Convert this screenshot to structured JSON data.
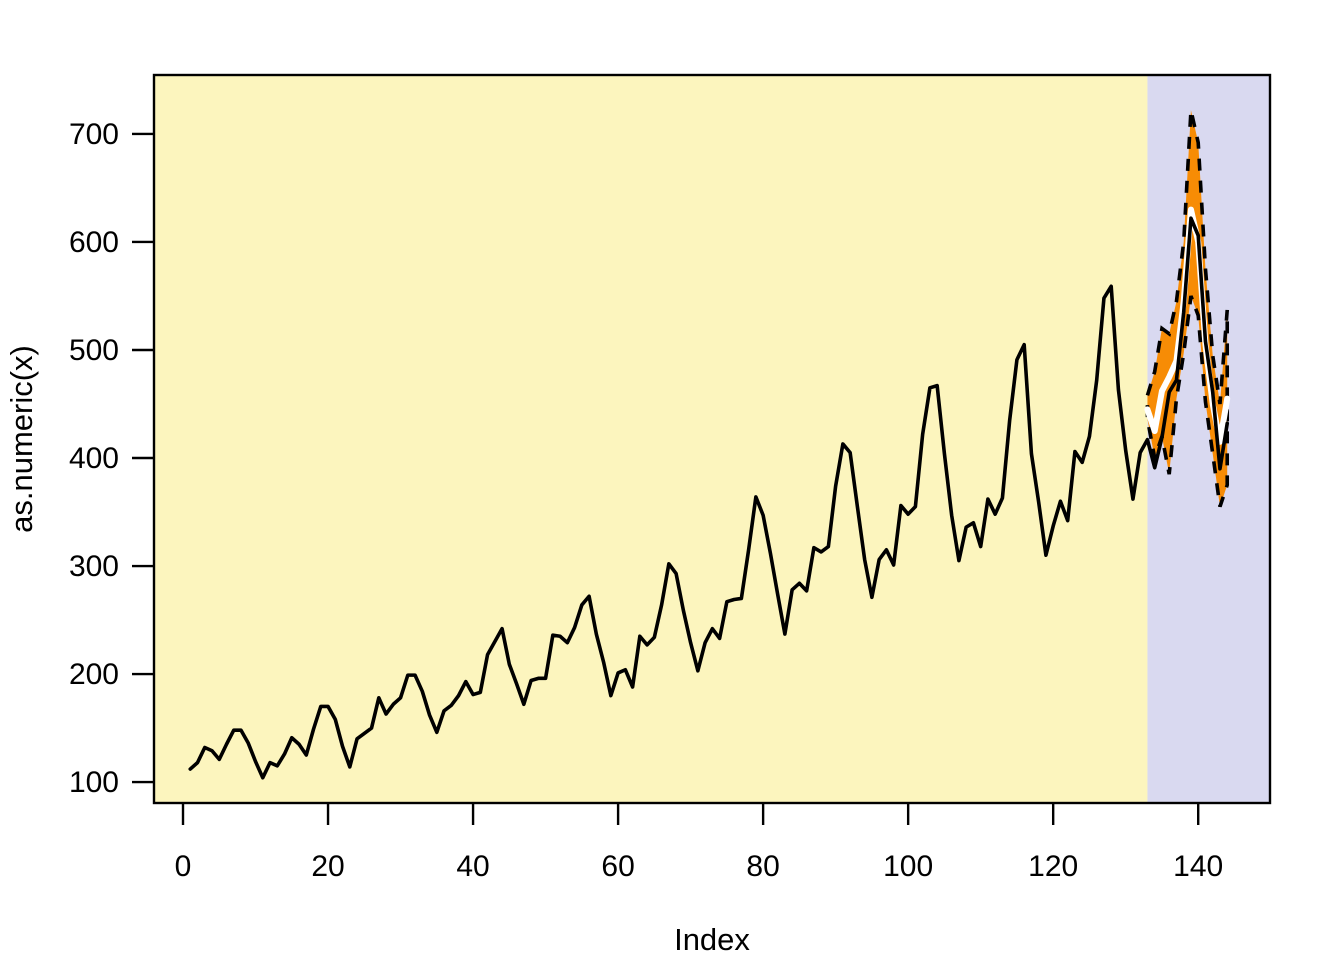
{
  "figure": {
    "x_axis_title": "Index",
    "y_axis_title": "as.numeric(x)",
    "page_background": "#ffffff",
    "text_color": "#000000"
  },
  "chart_data": {
    "type": "line",
    "title": "",
    "xlabel": "Index",
    "ylabel": "as.numeric(x)",
    "xlim": [
      -4.0,
      149.9
    ],
    "ylim": [
      80.6,
      754.6
    ],
    "x_ticks": [
      0,
      20,
      40,
      60,
      80,
      100,
      120,
      140
    ],
    "y_ticks": [
      100,
      200,
      300,
      400,
      500,
      600,
      700
    ],
    "grid": false,
    "legend": "none",
    "regions": [
      {
        "name": "history-region",
        "from": -4.0,
        "to": 133.0,
        "fill": "#FCF5BE"
      },
      {
        "name": "forecast-region",
        "from": 133.0,
        "to": 149.9,
        "fill": "#D9D9F0"
      }
    ],
    "interval_band": {
      "name": "prediction-interval",
      "x_start": 133,
      "upper": [
        458,
        480,
        520,
        515,
        545,
        600,
        722,
        692,
        575,
        495,
        450,
        537
      ],
      "lower": [
        436,
        400,
        420,
        385,
        455,
        497,
        550,
        532,
        452,
        404,
        355,
        375
      ],
      "fill": "#F78C05",
      "border_color": "#000000",
      "border_style": "dashed"
    },
    "series": [
      {
        "name": "observed-series",
        "x_start": 1,
        "color": "#000000",
        "style": "solid",
        "width": 3.6,
        "values": [
          112,
          118,
          132,
          129,
          121,
          135,
          148,
          148,
          136,
          119,
          104,
          118,
          115,
          126,
          141,
          135,
          125,
          149,
          170,
          170,
          158,
          133,
          114,
          140,
          145,
          150,
          178,
          163,
          172,
          178,
          199,
          199,
          184,
          162,
          146,
          166,
          171,
          180,
          193,
          181,
          183,
          218,
          230,
          242,
          209,
          191,
          172,
          194,
          196,
          196,
          236,
          235,
          229,
          243,
          264,
          272,
          237,
          211,
          180,
          201,
          204,
          188,
          235,
          227,
          234,
          264,
          302,
          293,
          259,
          229,
          203,
          229,
          242,
          233,
          267,
          269,
          270,
          315,
          364,
          347,
          312,
          274,
          237,
          278,
          284,
          277,
          317,
          313,
          318,
          374,
          413,
          405,
          355,
          306,
          271,
          306,
          315,
          301,
          356,
          348,
          355,
          422,
          465,
          467,
          404,
          347,
          305,
          336,
          340,
          318,
          362,
          348,
          363,
          435,
          491,
          505,
          404,
          359,
          310,
          337,
          360,
          342,
          406,
          396,
          420,
          472,
          548,
          559,
          463,
          407,
          362,
          405,
          417,
          391,
          419,
          461,
          472,
          535,
          622,
          606,
          508,
          461,
          390,
          432
        ]
      },
      {
        "name": "forecast-series",
        "x_start": 133,
        "color": "#FFFFFF",
        "style": "solid",
        "width": 6,
        "values": [
          445,
          425,
          462,
          475,
          490,
          545,
          630,
          600,
          505,
          450,
          415,
          455
        ]
      }
    ]
  }
}
